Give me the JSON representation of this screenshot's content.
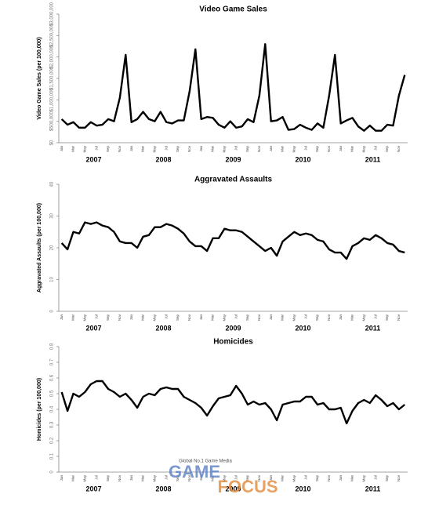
{
  "chart_data": [
    {
      "type": "line",
      "title": "Video Game Sales",
      "y_label": "Video Game Sales (per 100,000)",
      "categories": [
        "Jan",
        null,
        "Mar",
        null,
        "May",
        null,
        "Jul",
        null,
        "Sep",
        null,
        "Nov",
        null,
        "Jan",
        null,
        "Mar",
        null,
        "May",
        null,
        "Jul",
        null,
        "Sep",
        null,
        "Nov",
        null,
        "Jan",
        null,
        "Mar",
        null,
        "May",
        null,
        "Jul",
        null,
        "Sep",
        null,
        "Nov",
        null,
        "Jan",
        null,
        "Mar",
        null,
        "May",
        null,
        "Jul",
        null,
        "Sep",
        null,
        "Nov",
        null,
        "Jan",
        null,
        "Mar",
        null,
        "May",
        null,
        "Jul",
        null,
        "Sep",
        null,
        "Nov",
        null
      ],
      "years": [
        "2007",
        "2008",
        "2009",
        "2010",
        "2011"
      ],
      "color": "#000000",
      "values": [
        550000,
        420000,
        480000,
        350000,
        350000,
        480000,
        400000,
        420000,
        550000,
        500000,
        1050000,
        2050000,
        480000,
        550000,
        720000,
        550000,
        500000,
        720000,
        480000,
        450000,
        520000,
        520000,
        1200000,
        2180000,
        550000,
        600000,
        580000,
        420000,
        350000,
        500000,
        350000,
        380000,
        550000,
        480000,
        1100000,
        2300000,
        500000,
        520000,
        600000,
        300000,
        320000,
        420000,
        350000,
        300000,
        450000,
        350000,
        1100000,
        2050000,
        450000,
        520000,
        580000,
        380000,
        280000,
        400000,
        280000,
        280000,
        420000,
        400000,
        1100000,
        1580000
      ],
      "ylim": [
        0,
        3000000
      ],
      "yticks": [
        {
          "value": 0,
          "label": "$0"
        },
        {
          "value": 500000,
          "label": "$500,000"
        },
        {
          "value": 1000000,
          "label": "$1,000,000"
        },
        {
          "value": 1500000,
          "label": "$1,500,000"
        },
        {
          "value": 2000000,
          "label": "$2,000,000"
        },
        {
          "value": 2500000,
          "label": "$2,500,000"
        },
        {
          "value": 3000000,
          "label": "$3,000,000"
        }
      ]
    },
    {
      "type": "line",
      "title": "Aggravated Assaults",
      "y_label": "Aggravated Assaults (per 100,000)",
      "categories": [
        "Jan",
        null,
        "Mar",
        null,
        "May",
        null,
        "Jul",
        null,
        "Sep",
        null,
        "Nov",
        null,
        "Jan",
        null,
        "Mar",
        null,
        "May",
        null,
        "Jul",
        null,
        "Sep",
        null,
        "Nov",
        null,
        "Jan",
        null,
        "Mar",
        null,
        "May",
        null,
        "Jul",
        null,
        "Sep",
        null,
        "Nov",
        null,
        "Jan",
        null,
        "Mar",
        null,
        "May",
        null,
        "Jul",
        null,
        "Sep",
        null,
        "Nov",
        null,
        "Jan",
        null,
        "Mar",
        null,
        "May",
        null,
        "Jul",
        null,
        "Sep",
        null,
        "Nov",
        null
      ],
      "years": [
        "2007",
        "2008",
        "2009",
        "2010",
        "2011"
      ],
      "color": "#000000",
      "values": [
        21.5,
        19.5,
        25,
        24.5,
        28,
        27.5,
        28,
        27,
        26.5,
        25,
        22,
        21.5,
        21.5,
        20,
        23.5,
        24,
        26.5,
        26.5,
        27.5,
        27,
        26,
        24.5,
        22,
        20.5,
        20.5,
        19,
        23,
        23,
        26,
        25.5,
        25.5,
        25,
        23.5,
        22,
        20.5,
        19,
        20,
        17.5,
        22,
        23.5,
        25,
        24,
        24.5,
        24,
        22.5,
        22,
        19.5,
        18.5,
        18.5,
        16.5,
        20.5,
        21.5,
        23,
        22.5,
        24,
        23,
        21.5,
        21,
        19,
        18.5
      ],
      "ylim": [
        0,
        40
      ],
      "yticks": [
        0,
        10,
        20,
        30,
        40
      ]
    },
    {
      "type": "line",
      "title": "Homicides",
      "y_label": "Homicides (per 100,000)",
      "categories": [
        "Jan",
        null,
        "Mar",
        null,
        "May",
        null,
        "Jul",
        null,
        "Sep",
        null,
        "Nov",
        null,
        "Jan",
        null,
        "Mar",
        null,
        "May",
        null,
        "Jul",
        null,
        "Sep",
        null,
        "Nov",
        null,
        "Jan",
        null,
        "Mar",
        null,
        "May",
        null,
        "Jul",
        null,
        "Sep",
        null,
        "Nov",
        null,
        "Jan",
        null,
        "Mar",
        null,
        "May",
        null,
        "Jul",
        null,
        "Sep",
        null,
        "Nov",
        null,
        "Jan",
        null,
        "Mar",
        null,
        "May",
        null,
        "Jul",
        null,
        "Sep",
        null,
        "Nov",
        null
      ],
      "years": [
        "2007",
        "2008",
        "2009",
        "2010",
        "2011"
      ],
      "color": "#000000",
      "values": [
        0.51,
        0.39,
        0.5,
        0.48,
        0.51,
        0.56,
        0.58,
        0.58,
        0.53,
        0.51,
        0.48,
        0.5,
        0.46,
        0.41,
        0.48,
        0.5,
        0.49,
        0.53,
        0.54,
        0.53,
        0.53,
        0.48,
        0.46,
        0.44,
        0.41,
        0.36,
        0.42,
        0.47,
        0.48,
        0.49,
        0.55,
        0.5,
        0.43,
        0.45,
        0.43,
        0.44,
        0.4,
        0.33,
        0.43,
        0.44,
        0.45,
        0.45,
        0.48,
        0.48,
        0.43,
        0.44,
        0.4,
        0.4,
        0.41,
        0.31,
        0.39,
        0.44,
        0.46,
        0.44,
        0.49,
        0.46,
        0.42,
        0.44,
        0.4,
        0.43
      ],
      "ylim": [
        0,
        0.8
      ],
      "yticks": [
        0,
        0.1,
        0.2,
        0.3,
        0.4,
        0.5,
        0.6,
        0.7,
        0.8
      ]
    }
  ],
  "watermark": {
    "tagline": "Global No.1 Game Media",
    "brand": [
      "GAME",
      "FOCUS"
    ]
  }
}
